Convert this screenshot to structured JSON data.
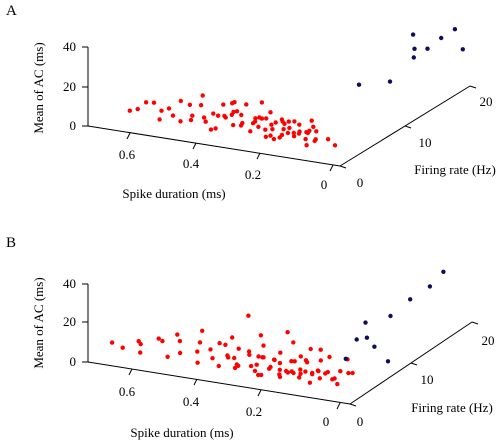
{
  "colors": {
    "group1": "#ff0000",
    "group2": "#0d0d5c",
    "axis": "#000000"
  },
  "chart_data": [
    {
      "type": "scatter",
      "panel_label": "A",
      "xlabel": "Spike duration (ms)",
      "ylabel": "Firing rate (Hz)",
      "zlabel": "Mean of AC (ms)",
      "x_ticks": [
        "0.6",
        "0.4",
        "0.2",
        "0"
      ],
      "y_ticks": [
        "0",
        "10",
        "20"
      ],
      "z_ticks": [
        "0",
        "20",
        "40"
      ],
      "series": [
        {
          "color": "group1",
          "points": [
            [
              0.62,
              2.0,
              6
            ],
            [
              0.58,
              1.0,
              10
            ],
            [
              0.55,
              3.0,
              6
            ],
            [
              0.52,
              2.5,
              9
            ],
            [
              0.5,
              2.0,
              7
            ],
            [
              0.48,
              3.5,
              10
            ],
            [
              0.47,
              1.5,
              6
            ],
            [
              0.45,
              2.2,
              8
            ],
            [
              0.44,
              3.0,
              12
            ],
            [
              0.42,
              2.6,
              5
            ],
            [
              0.41,
              1.8,
              9
            ],
            [
              0.4,
              3.4,
              7
            ],
            [
              0.39,
              2.1,
              11
            ],
            [
              0.38,
              1.2,
              5
            ],
            [
              0.37,
              2.9,
              8
            ],
            [
              0.36,
              4.1,
              9
            ],
            [
              0.35,
              1.6,
              12
            ],
            [
              0.34,
              2.4,
              6
            ],
            [
              0.33,
              3.1,
              10
            ],
            [
              0.33,
              1.9,
              14
            ],
            [
              0.32,
              2.7,
              7
            ],
            [
              0.31,
              3.8,
              5
            ],
            [
              0.3,
              1.4,
              9
            ],
            [
              0.3,
              2.2,
              18
            ],
            [
              0.29,
              3.0,
              8
            ],
            [
              0.28,
              2.5,
              11
            ],
            [
              0.28,
              1.7,
              6
            ],
            [
              0.27,
              3.6,
              9
            ],
            [
              0.26,
              2.0,
              13
            ],
            [
              0.26,
              2.9,
              5
            ],
            [
              0.25,
              1.3,
              10
            ],
            [
              0.25,
              3.3,
              7
            ],
            [
              0.24,
              2.6,
              15
            ],
            [
              0.24,
              1.9,
              4
            ],
            [
              0.23,
              3.9,
              8
            ],
            [
              0.22,
              2.3,
              11
            ],
            [
              0.22,
              1.5,
              6
            ],
            [
              0.21,
              3.1,
              9
            ],
            [
              0.21,
              2.7,
              12
            ],
            [
              0.2,
              1.8,
              5
            ],
            [
              0.2,
              2.4,
              8
            ],
            [
              0.19,
              3.5,
              10
            ],
            [
              0.19,
              1.6,
              7
            ],
            [
              0.18,
              2.9,
              4
            ],
            [
              0.18,
              2.1,
              13
            ],
            [
              0.17,
              3.2,
              6
            ],
            [
              0.17,
              1.4,
              9
            ],
            [
              0.16,
              2.6,
              11
            ],
            [
              0.16,
              3.7,
              5
            ],
            [
              0.15,
              2.0,
              8
            ],
            [
              0.15,
              1.2,
              10
            ],
            [
              0.14,
              2.8,
              7
            ],
            [
              0.14,
              3.4,
              12
            ],
            [
              0.13,
              1.9,
              6
            ],
            [
              0.13,
              2.5,
              9
            ],
            [
              0.12,
              1.5,
              4
            ],
            [
              0.12,
              3.0,
              8
            ],
            [
              0.11,
              2.2,
              5
            ],
            [
              0.1,
              1.8,
              7
            ],
            [
              0.08,
              2.6,
              6
            ],
            [
              0.05,
              2.0,
              5
            ],
            [
              0.45,
              3.8,
              15
            ],
            [
              0.35,
              2.8,
              16
            ],
            [
              0.28,
              3.5,
              17
            ],
            [
              0.32,
              1.5,
              20
            ],
            [
              0.4,
              4.2,
              11
            ],
            [
              0.26,
              4.0,
              3
            ],
            [
              0.22,
              4.4,
              4
            ],
            [
              0.3,
              4.6,
              6
            ],
            [
              0.36,
              0.8,
              7
            ],
            [
              0.5,
              3.2,
              12
            ],
            [
              0.56,
              2.4,
              11
            ],
            [
              0.6,
              3.4,
              8
            ],
            [
              0.53,
              1.6,
              5
            ],
            [
              0.43,
              0.9,
              9
            ],
            [
              0.38,
              4.4,
              6
            ],
            [
              0.2,
              0.9,
              6
            ],
            [
              0.15,
              4.2,
              7
            ]
          ]
        },
        {
          "color": "group2",
          "points": [
            [
              0.2,
              14,
              7
            ],
            [
              0.15,
              16,
              6
            ],
            [
              0.12,
              18,
              15
            ],
            [
              0.1,
              19,
              18
            ],
            [
              0.08,
              20,
              22
            ],
            [
              0.14,
              19,
              24
            ],
            [
              0.06,
              21,
              25
            ],
            [
              0.1,
              17,
              22
            ],
            [
              0.02,
              20,
              18
            ]
          ]
        }
      ]
    },
    {
      "type": "scatter",
      "panel_label": "B",
      "xlabel": "Spike duration (ms)",
      "ylabel": "Firing rate (Hz)",
      "zlabel": "Mean of AC (ms)",
      "x_ticks": [
        "0.6",
        "0.4",
        "0.2",
        "0"
      ],
      "y_ticks": [
        "0",
        "10",
        "20"
      ],
      "z_ticks": [
        "0",
        "20",
        "40"
      ],
      "series": [
        {
          "color": "group1",
          "points": [
            [
              0.66,
              1.5,
              8
            ],
            [
              0.64,
              2.0,
              5
            ],
            [
              0.6,
              2.5,
              7
            ],
            [
              0.58,
              1.2,
              6
            ],
            [
              0.55,
              3.0,
              9
            ],
            [
              0.52,
              2.0,
              4
            ],
            [
              0.5,
              2.8,
              11
            ],
            [
              0.48,
              1.6,
              8
            ],
            [
              0.46,
              3.2,
              6
            ],
            [
              0.44,
              2.4,
              13
            ],
            [
              0.43,
              1.4,
              5
            ],
            [
              0.42,
              2.9,
              9
            ],
            [
              0.4,
              2.0,
              7
            ],
            [
              0.39,
              3.5,
              11
            ],
            [
              0.38,
              1.8,
              4
            ],
            [
              0.37,
              2.6,
              8
            ],
            [
              0.36,
              3.1,
              6
            ],
            [
              0.35,
              1.5,
              10
            ],
            [
              0.34,
              2.3,
              5
            ],
            [
              0.33,
              3.7,
              9
            ],
            [
              0.33,
              2.0,
              14
            ],
            [
              0.32,
              1.3,
              7
            ],
            [
              0.31,
              2.8,
              4
            ],
            [
              0.3,
              3.4,
              8
            ],
            [
              0.3,
              1.9,
              12
            ],
            [
              0.29,
              2.5,
              6
            ],
            [
              0.28,
              3.0,
              9
            ],
            [
              0.28,
              1.6,
              5
            ],
            [
              0.27,
              2.2,
              11
            ],
            [
              0.26,
              3.6,
              7
            ],
            [
              0.26,
              1.4,
              4
            ],
            [
              0.25,
              2.9,
              9
            ],
            [
              0.25,
              2.1,
              6
            ],
            [
              0.24,
              3.3,
              12
            ],
            [
              0.24,
              1.7,
              8
            ],
            [
              0.23,
              2.6,
              5
            ],
            [
              0.22,
              3.9,
              7
            ],
            [
              0.22,
              2.0,
              10
            ],
            [
              0.21,
              1.3,
              6
            ],
            [
              0.21,
              2.7,
              4
            ],
            [
              0.2,
              3.2,
              9
            ],
            [
              0.2,
              1.8,
              7
            ],
            [
              0.19,
              2.4,
              5
            ],
            [
              0.19,
              3.6,
              11
            ],
            [
              0.18,
              1.5,
              8
            ],
            [
              0.18,
              2.9,
              6
            ],
            [
              0.17,
              2.1,
              4
            ],
            [
              0.17,
              3.4,
              9
            ],
            [
              0.16,
              1.7,
              7
            ],
            [
              0.16,
              2.6,
              12
            ],
            [
              0.15,
              3.0,
              5
            ],
            [
              0.15,
              1.9,
              8
            ],
            [
              0.14,
              2.4,
              6
            ],
            [
              0.14,
              3.8,
              10
            ],
            [
              0.13,
              1.4,
              4
            ],
            [
              0.13,
              2.8,
              7
            ],
            [
              0.12,
              2.1,
              9
            ],
            [
              0.12,
              3.3,
              5
            ],
            [
              0.11,
              1.8,
              6
            ],
            [
              0.1,
              2.5,
              8
            ],
            [
              0.09,
              3.0,
              4
            ],
            [
              0.08,
              2.0,
              6
            ],
            [
              0.07,
              2.7,
              9
            ],
            [
              0.06,
              1.6,
              5
            ],
            [
              0.05,
              3.5,
              7
            ],
            [
              0.04,
              2.2,
              10
            ],
            [
              0.34,
              4.2,
              26
            ],
            [
              0.3,
              3.8,
              18
            ],
            [
              0.24,
              4.5,
              20
            ],
            [
              0.28,
              3.0,
              15
            ],
            [
              0.38,
              4.0,
              14
            ],
            [
              0.22,
              4.2,
              16
            ],
            [
              0.18,
              4.6,
              13
            ],
            [
              0.15,
              4.4,
              14
            ],
            [
              0.12,
              4.0,
              12
            ],
            [
              0.08,
              4.5,
              11
            ],
            [
              0.46,
              4.0,
              15
            ],
            [
              0.52,
              3.6,
              12
            ],
            [
              0.56,
              3.0,
              10
            ],
            [
              0.62,
              3.4,
              6
            ],
            [
              0.42,
              4.4,
              9
            ],
            [
              0.2,
              0.8,
              6
            ],
            [
              0.26,
              0.9,
              5
            ],
            [
              0.32,
              0.8,
              7
            ]
          ]
        },
        {
          "color": "group2",
          "points": [
            [
              0.02,
              4,
              25
            ],
            [
              0.0,
              4,
              21
            ],
            [
              0.04,
              5,
              30
            ],
            [
              0.08,
              6,
              18
            ],
            [
              0.06,
              3,
              15
            ],
            [
              -0.02,
              5,
              12
            ],
            [
              0.12,
              14,
              12
            ],
            [
              0.1,
              16,
              17
            ],
            [
              0.08,
              18,
              20
            ],
            [
              0.06,
              19,
              26
            ],
            [
              -0.02,
              24,
              43
            ]
          ]
        }
      ]
    }
  ]
}
